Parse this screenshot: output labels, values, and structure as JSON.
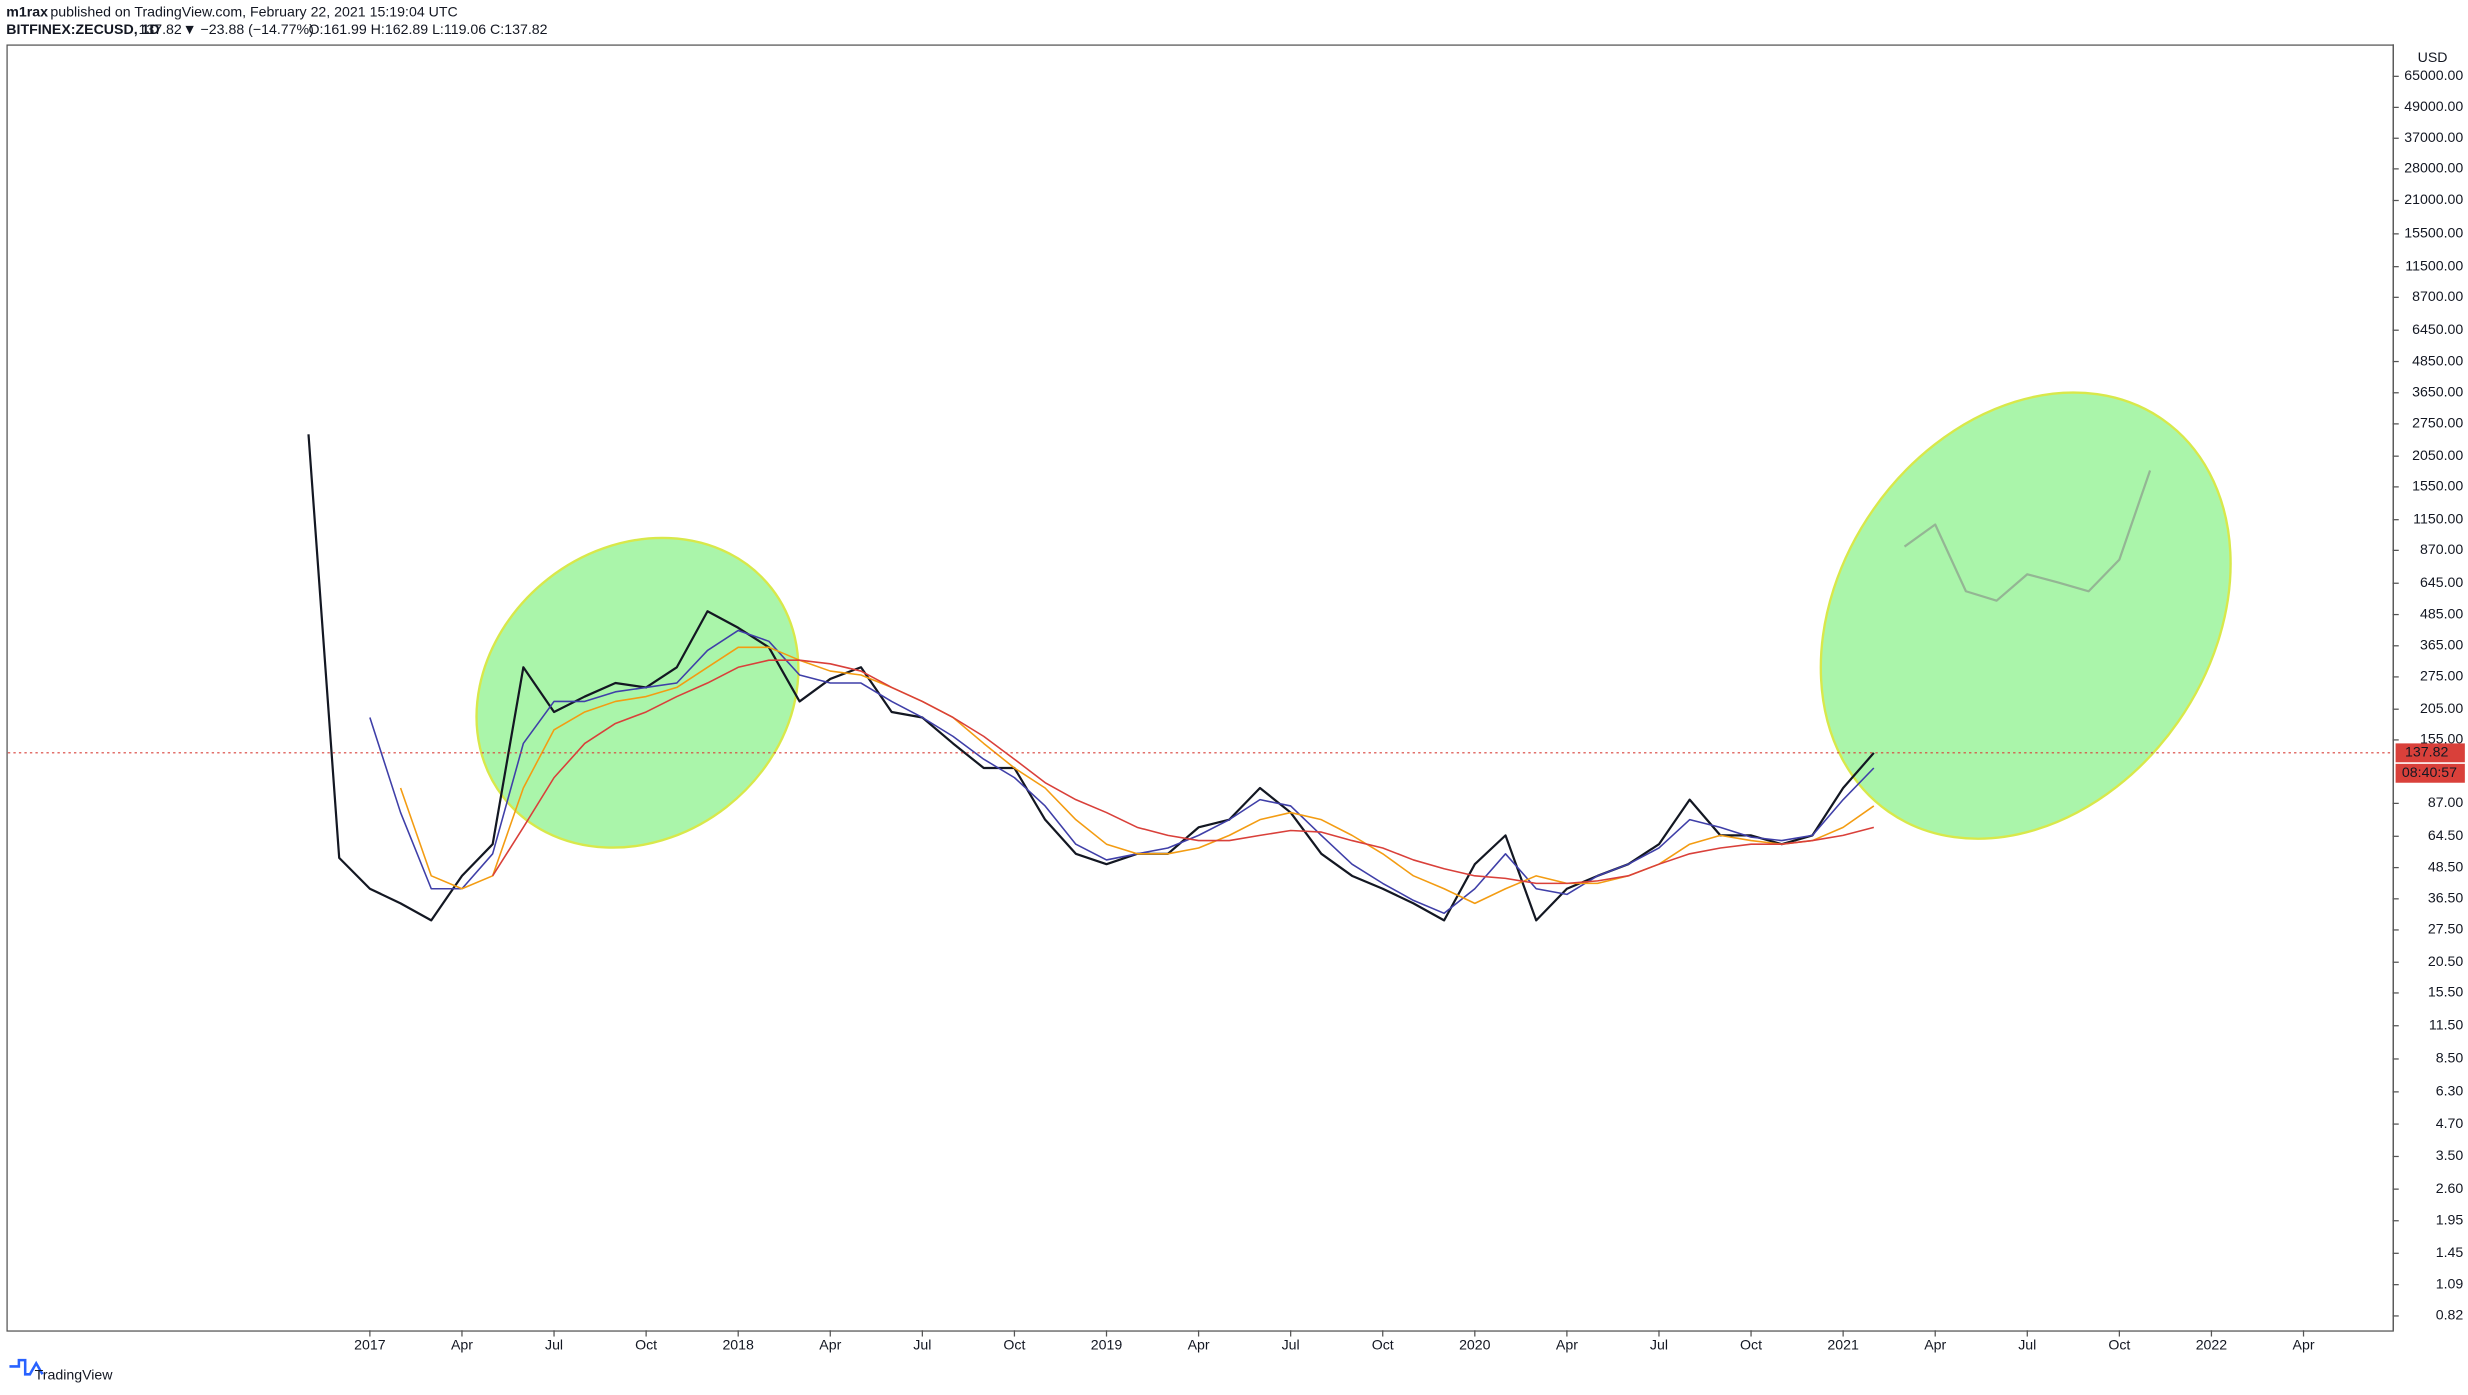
{
  "header": {
    "author": "m1rax",
    "published": "published on TradingView.com, February 22, 2021 15:19:04 UTC"
  },
  "chart_data": {
    "type": "line",
    "title": "BITFINEX:ZECUSD, 1D",
    "last_price": 137.82,
    "change": "▼ −23.88 (−14.77%)",
    "ohlc": "O:161.99 H:162.89 L:119.06 C:137.82",
    "countdown": "08:40:57",
    "currency": "USD",
    "log_scale": true,
    "grid": false,
    "categories": [
      null,
      null,
      "2017",
      null,
      null,
      "Apr",
      null,
      null,
      "Jul",
      null,
      null,
      "Oct",
      null,
      null,
      "2018",
      null,
      null,
      "Apr",
      null,
      null,
      "Jul",
      null,
      null,
      "Oct",
      null,
      null,
      "2019",
      null,
      null,
      "Apr",
      null,
      null,
      "Jul",
      null,
      null,
      "Oct",
      null,
      null,
      "2020",
      null,
      null,
      "Apr",
      null,
      null,
      "Jul",
      null,
      null,
      "Oct",
      null,
      null,
      "2021",
      null,
      null,
      "Apr",
      null,
      null,
      "Jul",
      null,
      null,
      "Oct",
      null,
      null,
      "2022",
      null,
      null,
      "Apr"
    ],
    "series": [
      {
        "color": "#131722",
        "values": [
          2500,
          53,
          40,
          35,
          30,
          45,
          60,
          300,
          200,
          230,
          260,
          250,
          300,
          500,
          430,
          360,
          220,
          270,
          300,
          200,
          190,
          150,
          120,
          120,
          75,
          55,
          50,
          55,
          55,
          70,
          75,
          100,
          80,
          55,
          45,
          40,
          35,
          30,
          50,
          65,
          30,
          40,
          45,
          50,
          60,
          90,
          65,
          65,
          60,
          65,
          100,
          137.82,
          null,
          null,
          null,
          null,
          null,
          null,
          null,
          null,
          null,
          null,
          null,
          null,
          null,
          null
        ]
      },
      {
        "color": "#8a9a8a",
        "values": [
          null,
          null,
          null,
          null,
          null,
          null,
          null,
          null,
          null,
          null,
          null,
          null,
          null,
          null,
          null,
          null,
          null,
          null,
          null,
          null,
          null,
          null,
          null,
          null,
          null,
          null,
          null,
          null,
          null,
          null,
          null,
          null,
          null,
          null,
          null,
          null,
          null,
          null,
          null,
          null,
          null,
          null,
          null,
          null,
          null,
          null,
          null,
          null,
          null,
          null,
          null,
          null,
          900,
          1100,
          600,
          550,
          700,
          650,
          600,
          800,
          1800,
          null,
          null,
          null,
          null,
          null
        ]
      },
      {
        "color": "#3f3fa8",
        "values": [
          null,
          null,
          190,
          80,
          40,
          40,
          55,
          150,
          220,
          220,
          240,
          250,
          260,
          350,
          420,
          380,
          280,
          260,
          260,
          220,
          190,
          160,
          130,
          110,
          85,
          60,
          52,
          55,
          58,
          65,
          75,
          90,
          85,
          65,
          50,
          42,
          36,
          32,
          40,
          55,
          40,
          38,
          45,
          50,
          58,
          75,
          70,
          64,
          62,
          65,
          90,
          120,
          null,
          null,
          null,
          null,
          null,
          null,
          null,
          null,
          null,
          null,
          null,
          null,
          null,
          null
        ]
      },
      {
        "color": "#f39c12",
        "values": [
          null,
          null,
          null,
          100,
          45,
          40,
          45,
          100,
          170,
          200,
          220,
          230,
          250,
          300,
          360,
          360,
          320,
          290,
          280,
          250,
          220,
          190,
          150,
          120,
          100,
          75,
          60,
          55,
          55,
          58,
          65,
          75,
          80,
          75,
          65,
          55,
          45,
          40,
          35,
          40,
          45,
          42,
          42,
          45,
          50,
          60,
          65,
          62,
          60,
          62,
          70,
          85,
          null,
          null,
          null,
          null,
          null,
          null,
          null,
          null,
          null,
          null,
          null,
          null,
          null,
          null
        ]
      },
      {
        "color": "#d9403a",
        "values": [
          null,
          null,
          null,
          null,
          null,
          null,
          45,
          70,
          110,
          150,
          180,
          200,
          230,
          260,
          300,
          320,
          320,
          310,
          290,
          250,
          220,
          190,
          160,
          130,
          105,
          90,
          80,
          70,
          65,
          62,
          62,
          65,
          68,
          67,
          62,
          58,
          52,
          48,
          45,
          44,
          42,
          42,
          43,
          45,
          50,
          55,
          58,
          60,
          60,
          62,
          65,
          70,
          null,
          null,
          null,
          null,
          null,
          null,
          null,
          null,
          null,
          null,
          null,
          null,
          null,
          null
        ]
      }
    ],
    "ylim": [
      0.72,
      87000
    ],
    "yticks": [
      {
        "value": 65000,
        "label": "65000.00"
      },
      {
        "value": 49000,
        "label": "49000.00"
      },
      {
        "value": 37000,
        "label": "37000.00"
      },
      {
        "value": 28000,
        "label": "28000.00"
      },
      {
        "value": 21000,
        "label": "21000.00"
      },
      {
        "value": 15500,
        "label": "15500.00"
      },
      {
        "value": 11500,
        "label": "11500.00"
      },
      {
        "value": 8700,
        "label": "8700.00"
      },
      {
        "value": 6450,
        "label": "6450.00"
      },
      {
        "value": 4850,
        "label": "4850.00"
      },
      {
        "value": 3650,
        "label": "3650.00"
      },
      {
        "value": 2750,
        "label": "2750.00"
      },
      {
        "value": 2050,
        "label": "2050.00"
      },
      {
        "value": 1550,
        "label": "1550.00"
      },
      {
        "value": 1150,
        "label": "1150.00"
      },
      {
        "value": 870,
        "label": "870.00"
      },
      {
        "value": 645,
        "label": "645.00"
      },
      {
        "value": 485,
        "label": "485.00"
      },
      {
        "value": 365,
        "label": "365.00"
      },
      {
        "value": 275,
        "label": "275.00"
      },
      {
        "value": 205,
        "label": "205.00"
      },
      {
        "value": 155,
        "label": "155.00"
      },
      {
        "value": 87,
        "label": "87.00"
      },
      {
        "value": 64.5,
        "label": "64.50"
      },
      {
        "value": 48.5,
        "label": "48.50"
      },
      {
        "value": 36.5,
        "label": "36.50"
      },
      {
        "value": 27.5,
        "label": "27.50"
      },
      {
        "value": 20.5,
        "label": "20.50"
      },
      {
        "value": 15.5,
        "label": "15.50"
      },
      {
        "value": 11.5,
        "label": "11.50"
      },
      {
        "value": 8.5,
        "label": "8.50"
      },
      {
        "value": 6.3,
        "label": "6.30"
      },
      {
        "value": 4.7,
        "label": "4.70"
      },
      {
        "value": 3.5,
        "label": "3.50"
      },
      {
        "value": 2.6,
        "label": "2.60"
      },
      {
        "value": 1.95,
        "label": "1.95"
      },
      {
        "value": 1.45,
        "label": "1.45"
      },
      {
        "value": 1.09,
        "label": "1.09"
      },
      {
        "value": 0.82,
        "label": "0.82"
      }
    ]
  },
  "footer": {
    "brand": "TradingView"
  }
}
